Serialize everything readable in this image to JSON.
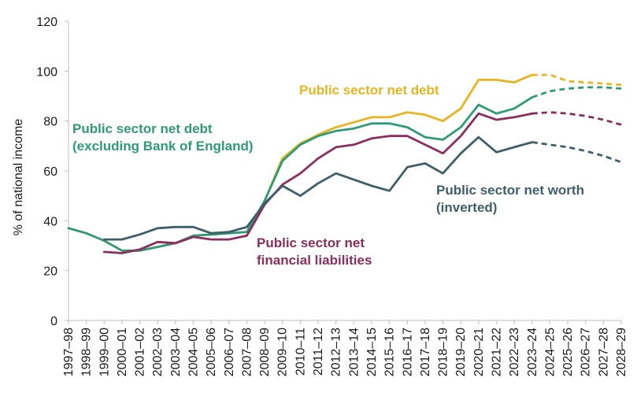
{
  "chart_data": {
    "type": "line",
    "title": "",
    "xlabel": "",
    "ylabel": "% of national income",
    "ylim": [
      0,
      120
    ],
    "yticks": [
      0,
      20,
      40,
      60,
      80,
      100,
      120
    ],
    "grid": false,
    "legend": "none",
    "x": [
      "1997–98",
      "1998–99",
      "1999–00",
      "2000–01",
      "2001–02",
      "2002–03",
      "2003–04",
      "2004–05",
      "2005–06",
      "2006–07",
      "2007–08",
      "2008–09",
      "2009–10",
      "2010–11",
      "2011–12",
      "2012–13",
      "2013–14",
      "2014–15",
      "2015–16",
      "2016–17",
      "2017–18",
      "2018–19",
      "2019–20",
      "2020–21",
      "2021–22",
      "2022–23",
      "2023–24",
      "2024–25",
      "2025–26",
      "2026–27",
      "2027–28",
      "2028–29"
    ],
    "forecast_from": "2023–24",
    "series": [
      {
        "name": "Public sector net debt",
        "color": "#e8b520",
        "values": [
          37,
          35,
          32,
          28,
          28,
          29.5,
          31,
          34,
          34.5,
          35,
          35.5,
          48,
          65,
          71,
          74.5,
          77.5,
          79.5,
          81.5,
          81.5,
          83.5,
          82.5,
          80,
          85,
          96.5,
          96.5,
          95.5,
          98.5,
          98.5,
          96,
          95.5,
          95,
          94.5
        ],
        "label": "Public sector net debt",
        "label_lines": [
          "Public sector net debt"
        ]
      },
      {
        "name": "Public sector net debt (excluding Bank of England)",
        "color": "#2e9b77",
        "values": [
          37,
          35,
          32,
          28,
          28,
          29.5,
          31,
          34,
          34.5,
          35,
          35.5,
          48,
          64,
          70.5,
          74,
          76,
          77,
          79,
          79,
          77.5,
          73.5,
          72.5,
          77.5,
          86.5,
          83,
          85,
          89.5,
          92,
          93,
          93.5,
          93.5,
          93
        ],
        "label": "Public sector net debt (excluding Bank of England)",
        "label_lines": [
          "Public sector net debt",
          "(excluding Bank of England)"
        ]
      },
      {
        "name": "Public sector net financial liabilities",
        "color": "#8b2e5e",
        "values": [
          null,
          null,
          27.5,
          27,
          28.5,
          31.5,
          31,
          33.5,
          32.5,
          32.5,
          34,
          46.5,
          54.5,
          59,
          65,
          69.5,
          70.5,
          73,
          74,
          74,
          70.5,
          67,
          74,
          83,
          80.5,
          81.5,
          83,
          83.5,
          83,
          82,
          80.5,
          78.5
        ],
        "label": "Public sector net financial liabilities",
        "label_lines": [
          "Public sector net",
          "financial liabilities"
        ]
      },
      {
        "name": "Public sector net worth (inverted)",
        "color": "#3e5e6a",
        "values": [
          null,
          null,
          32.5,
          32.5,
          34.5,
          37,
          37.5,
          37.5,
          35,
          35.5,
          37.5,
          47,
          54,
          50,
          55,
          59,
          56.5,
          54,
          52,
          61.5,
          63,
          59,
          67,
          73.5,
          67.5,
          69.5,
          71.5,
          70.5,
          69.5,
          68,
          66,
          63.5
        ],
        "label": "Public sector net worth (inverted)",
        "label_lines": [
          "Public sector net worth",
          "(inverted)"
        ]
      }
    ]
  }
}
